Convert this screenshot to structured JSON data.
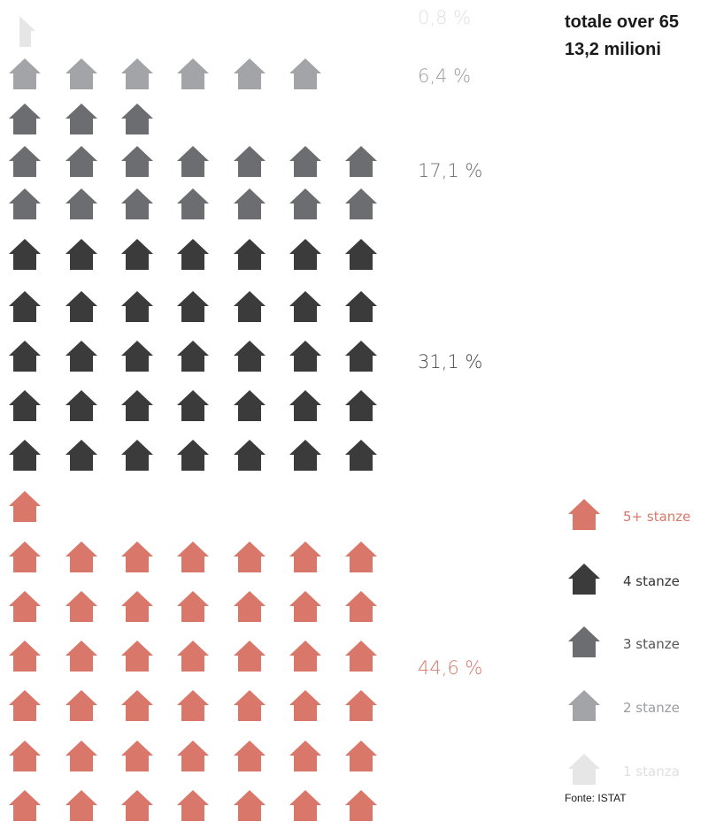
{
  "title_line1": "totale over 65",
  "title_line2": "13,2 milioni",
  "source": "Fonte: ISTAT",
  "chart_data": {
    "type": "pictogram",
    "icon": "house-icon",
    "series": [
      {
        "name": "1 stanza",
        "percent_label": "0,8 %",
        "value": 0.8,
        "icons": 1,
        "color": "#e6e6e6",
        "label_color": "#e0e0e0"
      },
      {
        "name": "2 stanze",
        "percent_label": "6,4 %",
        "value": 6.4,
        "icons": 6,
        "color": "#a2a4a8",
        "label_color": "#9a9c9f"
      },
      {
        "name": "3 stanze",
        "percent_label": "17,1 %",
        "value": 17.1,
        "icons": 17,
        "color": "#6b6d70",
        "label_color": "#6b6d70"
      },
      {
        "name": "4 stanze",
        "percent_label": "31,1 %",
        "value": 31.1,
        "icons": 31,
        "color": "#3b3b3b",
        "label_color": "#4a4a4a"
      },
      {
        "name": "5+ stanze",
        "percent_label": "44,6 %",
        "value": 44.6,
        "icons": 45,
        "color": "#d9786a",
        "label_color": "#d9786a"
      }
    ],
    "legend": [
      {
        "name": "5+ stanze",
        "color": "#d9786a",
        "label_color": "#d9786a"
      },
      {
        "name": "4 stanze",
        "color": "#3b3b3b",
        "label_color": "#333333"
      },
      {
        "name": "3 stanze",
        "color": "#6b6d70",
        "label_color": "#555555"
      },
      {
        "name": "2 stanze",
        "color": "#a2a4a8",
        "label_color": "#9a9c9f"
      },
      {
        "name": "1 stanza",
        "color": "#e6e6e6",
        "label_color": "#e0e0e0"
      }
    ]
  }
}
